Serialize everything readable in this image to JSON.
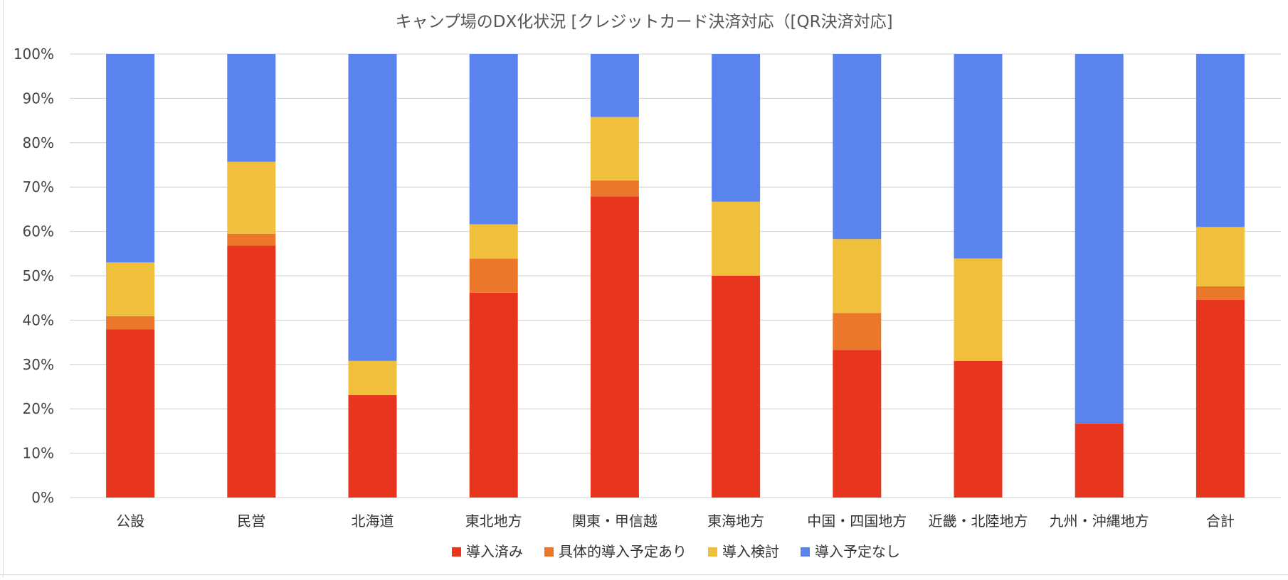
{
  "colors": {
    "導入済み": "#e8361e",
    "具体的導入予定あり": "#eb772b",
    "導入検討": "#f0c03c",
    "導入予定なし": "#5b83ee"
  },
  "chart_data": {
    "type": "bar",
    "stacked": true,
    "percent_stacked": true,
    "title": "キャンプ場のDX化状況 [クレジットカード決済対応（[QR決済対応]",
    "xlabel": "",
    "ylabel": "",
    "ylim": [
      0,
      100
    ],
    "y_ticks": [
      "0%",
      "10%",
      "20%",
      "30%",
      "40%",
      "50%",
      "60%",
      "70%",
      "80%",
      "90%",
      "100%"
    ],
    "grid": true,
    "legend_position": "bottom",
    "categories": [
      "公設",
      "民営",
      "北海道",
      "東北地方",
      "関東・甲信越",
      "東海地方",
      "中国・四国地方",
      "近畿・北陸地方",
      "九州・沖縄地方",
      "合計"
    ],
    "series": [
      {
        "name": "導入済み",
        "values": [
          37.9,
          56.8,
          23.1,
          46.2,
          67.9,
          50.0,
          33.3,
          30.8,
          16.7,
          44.6
        ]
      },
      {
        "name": "具体的導入予定あり",
        "values": [
          3.0,
          2.7,
          0.0,
          7.7,
          3.6,
          0.0,
          8.3,
          0.0,
          0.0,
          3.0
        ]
      },
      {
        "name": "導入検討",
        "values": [
          12.1,
          16.2,
          7.7,
          7.7,
          14.3,
          16.7,
          16.7,
          23.1,
          0.0,
          13.4
        ]
      },
      {
        "name": "導入予定なし",
        "values": [
          47.0,
          24.3,
          69.2,
          38.4,
          14.2,
          33.3,
          41.7,
          46.1,
          83.3,
          39.0
        ]
      }
    ]
  }
}
